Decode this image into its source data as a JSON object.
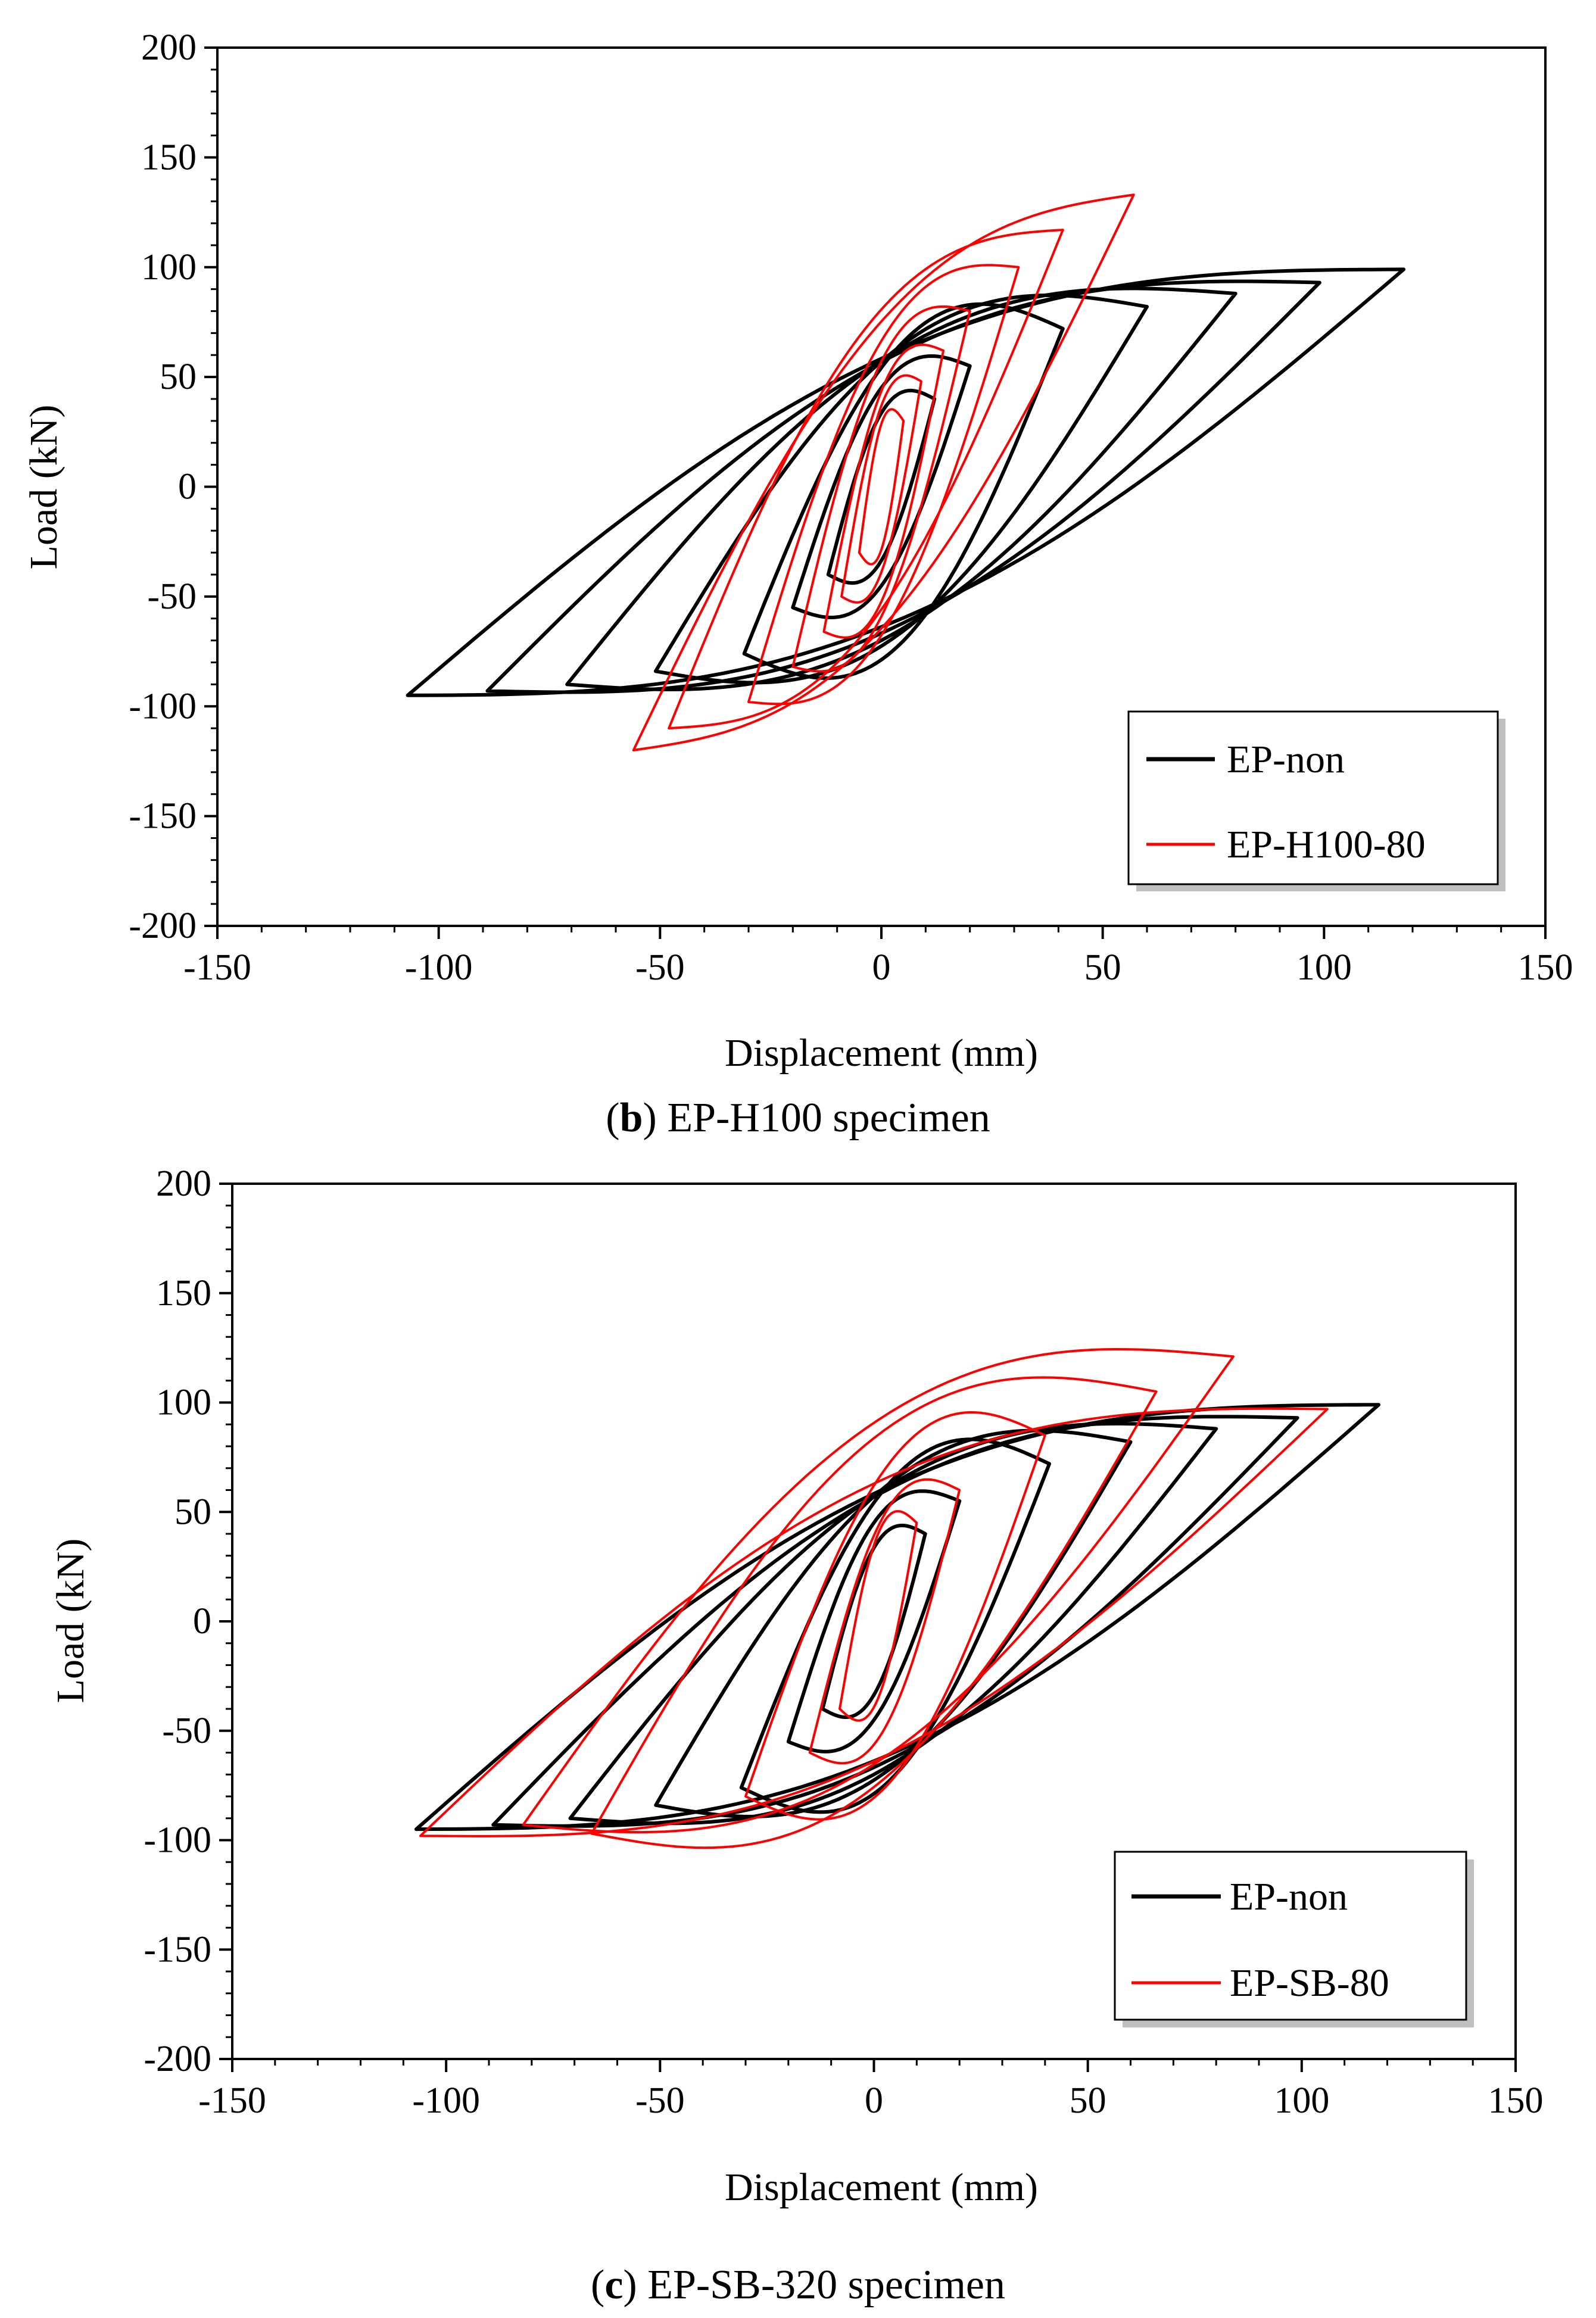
{
  "chart_data": [
    {
      "type": "line",
      "caption": {
        "letter": "b",
        "text": "EP-H100 specimen"
      },
      "xlabel": "Displacement (mm)",
      "ylabel": "Load (kN)",
      "xlim": [
        -150,
        150
      ],
      "ylim": [
        -200,
        200
      ],
      "xticks": [
        -150,
        -100,
        -50,
        0,
        50,
        100,
        150
      ],
      "yticks": [
        -200,
        -150,
        -100,
        -50,
        0,
        50,
        100,
        150,
        200
      ],
      "grid": false,
      "legend_position": "bottom-right",
      "series": [
        {
          "name": "EP-non",
          "color": "#000000",
          "loops": [
            {
              "dpos": 12,
              "ppos": 40,
              "dneg": -12,
              "pneg": -40,
              "w": 10
            },
            {
              "dpos": 20,
              "ppos": 55,
              "dneg": -20,
              "pneg": -55,
              "w": 16
            },
            {
              "dpos": 41,
              "ppos": 72,
              "dneg": -31,
              "pneg": -76,
              "w": 32
            },
            {
              "dpos": 60,
              "ppos": 82,
              "dneg": -51,
              "pneg": -84,
              "w": 42
            },
            {
              "dpos": 80,
              "ppos": 88,
              "dneg": -71,
              "pneg": -90,
              "w": 52
            },
            {
              "dpos": 99,
              "ppos": 93,
              "dneg": -89,
              "pneg": -93,
              "w": 60
            },
            {
              "dpos": 118,
              "ppos": 99,
              "dneg": -107,
              "pneg": -95,
              "w": 68
            }
          ]
        },
        {
          "name": "EP-H100-80",
          "color": "#ff0000",
          "loops": [
            {
              "dpos": 5,
              "ppos": 30,
              "dneg": -5,
              "pneg": -30,
              "w": 5
            },
            {
              "dpos": 9,
              "ppos": 48,
              "dneg": -9,
              "pneg": -50,
              "w": 7
            },
            {
              "dpos": 14,
              "ppos": 62,
              "dneg": -13,
              "pneg": -66,
              "w": 10
            },
            {
              "dpos": 20,
              "ppos": 80,
              "dneg": -20,
              "pneg": -82,
              "w": 14
            },
            {
              "dpos": 31,
              "ppos": 100,
              "dneg": -30,
              "pneg": -98,
              "w": 20
            },
            {
              "dpos": 41,
              "ppos": 117,
              "dneg": -48,
              "pneg": -110,
              "w": 26
            },
            {
              "dpos": 57,
              "ppos": 133,
              "dneg": -56,
              "pneg": -120,
              "w": 30
            }
          ]
        }
      ]
    },
    {
      "type": "line",
      "caption": {
        "letter": "c",
        "text": "EP-SB-320 specimen"
      },
      "xlabel": "Displacement (mm)",
      "ylabel": "Load (kN)",
      "xlim": [
        -150,
        150
      ],
      "ylim": [
        -200,
        200
      ],
      "xticks": [
        -150,
        -100,
        -50,
        0,
        50,
        100,
        150
      ],
      "yticks": [
        -200,
        -150,
        -100,
        -50,
        0,
        50,
        100,
        150,
        200
      ],
      "grid": false,
      "legend_position": "bottom-right",
      "series": [
        {
          "name": "EP-non",
          "color": "#000000",
          "loops": [
            {
              "dpos": 12,
              "ppos": 40,
              "dneg": -12,
              "pneg": -40,
              "w": 10
            },
            {
              "dpos": 20,
              "ppos": 55,
              "dneg": -20,
              "pneg": -55,
              "w": 16
            },
            {
              "dpos": 41,
              "ppos": 72,
              "dneg": -31,
              "pneg": -76,
              "w": 32
            },
            {
              "dpos": 60,
              "ppos": 82,
              "dneg": -51,
              "pneg": -84,
              "w": 42
            },
            {
              "dpos": 80,
              "ppos": 88,
              "dneg": -71,
              "pneg": -90,
              "w": 52
            },
            {
              "dpos": 99,
              "ppos": 93,
              "dneg": -89,
              "pneg": -93,
              "w": 60
            },
            {
              "dpos": 118,
              "ppos": 99,
              "dneg": -107,
              "pneg": -95,
              "w": 68
            }
          ]
        },
        {
          "name": "EP-SB-80",
          "color": "#ff0000",
          "loops": [
            {
              "dpos": 10,
              "ppos": 45,
              "dneg": -8,
              "pneg": -40,
              "w": 8
            },
            {
              "dpos": 20,
              "ppos": 60,
              "dneg": -15,
              "pneg": -60,
              "w": 14
            },
            {
              "dpos": 40,
              "ppos": 85,
              "dneg": -30,
              "pneg": -80,
              "w": 30
            },
            {
              "dpos": 66,
              "ppos": 105,
              "dneg": -66,
              "pneg": -97,
              "w": 50
            },
            {
              "dpos": 84,
              "ppos": 121,
              "dneg": -82,
              "pneg": -93,
              "w": 58
            },
            {
              "dpos": 106,
              "ppos": 97,
              "dneg": -106,
              "pneg": -98,
              "w": 66
            }
          ]
        }
      ]
    }
  ]
}
